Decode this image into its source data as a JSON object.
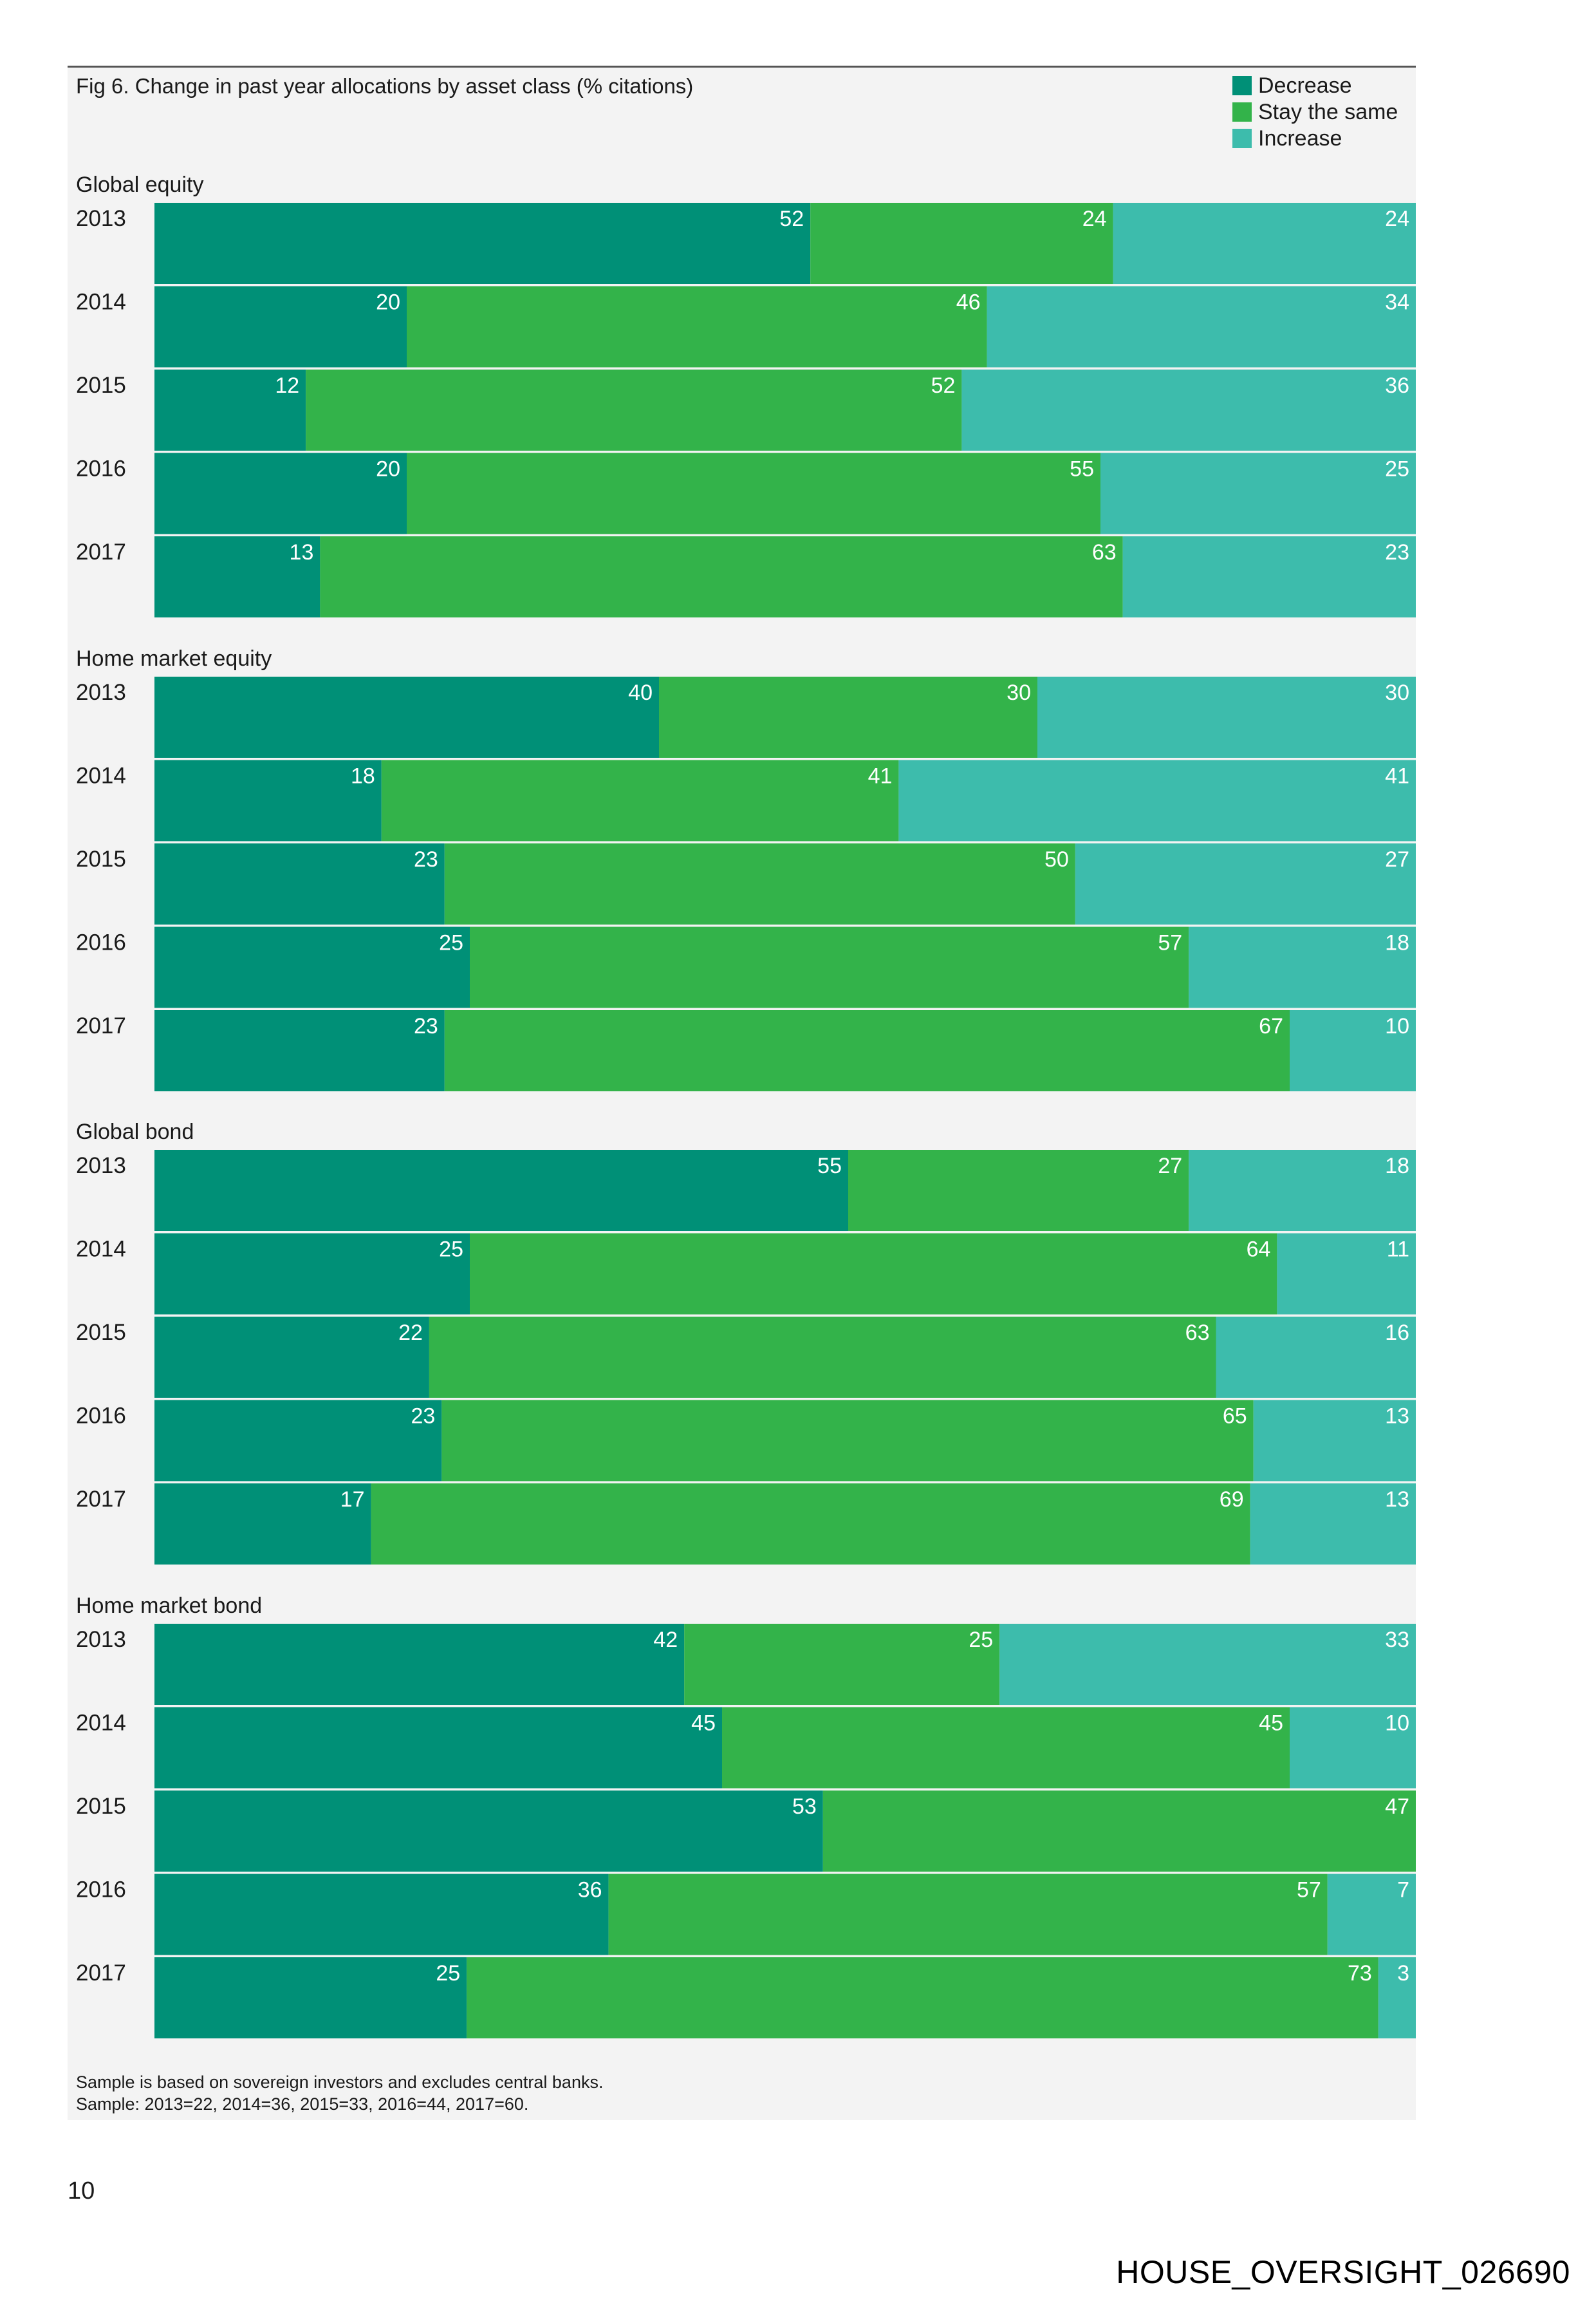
{
  "chart_data": {
    "type": "bar",
    "orientation": "horizontal",
    "stacked": true,
    "normalized": "percent",
    "title": "Fig 6. Change in past year allocations by asset class (% citations)",
    "legend": {
      "placement": "top-right",
      "entries": [
        "Decrease",
        "Stay the same",
        "Increase"
      ]
    },
    "xlim": [
      0,
      100
    ],
    "grid": false,
    "series_colors": [
      "#009077",
      "#33b34a",
      "#3dbcac"
    ],
    "groups": [
      {
        "name": "Global equity",
        "rows": [
          {
            "year": "2013",
            "values": [
              52,
              24,
              24
            ]
          },
          {
            "year": "2014",
            "values": [
              20,
              46,
              34
            ]
          },
          {
            "year": "2015",
            "values": [
              12,
              52,
              36
            ]
          },
          {
            "year": "2016",
            "values": [
              20,
              55,
              25
            ]
          },
          {
            "year": "2017",
            "values": [
              13,
              63,
              23
            ]
          }
        ]
      },
      {
        "name": "Home market equity",
        "rows": [
          {
            "year": "2013",
            "values": [
              40,
              30,
              30
            ]
          },
          {
            "year": "2014",
            "values": [
              18,
              41,
              41
            ]
          },
          {
            "year": "2015",
            "values": [
              23,
              50,
              27
            ]
          },
          {
            "year": "2016",
            "values": [
              25,
              57,
              18
            ]
          },
          {
            "year": "2017",
            "values": [
              23,
              67,
              10
            ]
          }
        ]
      },
      {
        "name": "Global bond",
        "rows": [
          {
            "year": "2013",
            "values": [
              55,
              27,
              18
            ]
          },
          {
            "year": "2014",
            "values": [
              25,
              64,
              11
            ]
          },
          {
            "year": "2015",
            "values": [
              22,
              63,
              16
            ]
          },
          {
            "year": "2016",
            "values": [
              23,
              65,
              13
            ]
          },
          {
            "year": "2017",
            "values": [
              17,
              69,
              13
            ]
          }
        ]
      },
      {
        "name": "Home market bond",
        "rows": [
          {
            "year": "2013",
            "values": [
              42,
              25,
              33
            ]
          },
          {
            "year": "2014",
            "values": [
              45,
              45,
              10
            ]
          },
          {
            "year": "2015",
            "values": [
              53,
              47,
              0
            ],
            "labels": [
              "53",
              "47",
              ""
            ]
          },
          {
            "year": "2016",
            "values": [
              36,
              57,
              7
            ]
          },
          {
            "year": "2017",
            "values": [
              25,
              73,
              3
            ]
          }
        ]
      }
    ],
    "notes": [
      "Sample is based on sovereign investors and excludes central banks.",
      "Sample: 2013=22, 2014=36, 2015=33, 2016=44, 2017=60."
    ]
  },
  "page": {
    "number": "10",
    "stamp": "HOUSE_OVERSIGHT_026690"
  }
}
